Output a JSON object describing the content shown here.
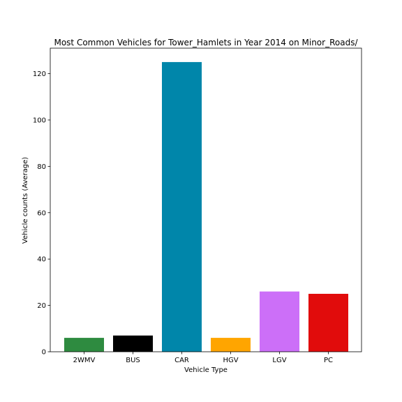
{
  "chart_data": {
    "type": "bar",
    "title": "Most Common Vehicles for Tower_Hamlets in Year 2014 on Minor_Roads/",
    "xlabel": "Vehicle Type",
    "ylabel": "Vehicle counts (Average)",
    "categories": [
      "2WMV",
      "BUS",
      "CAR",
      "HGV",
      "LGV",
      "PC"
    ],
    "values": [
      6,
      7,
      125,
      6,
      26,
      25
    ],
    "colors": [
      "#2e8b40",
      "#000000",
      "#0086aa",
      "#ffa500",
      "#cc6ff8",
      "#e10c0c"
    ],
    "ylim": [
      0,
      131
    ],
    "yticks": [
      0,
      20,
      40,
      60,
      80,
      100,
      120
    ],
    "ytick_labels": [
      "0",
      "20",
      "40",
      "60",
      "80",
      "100",
      "120"
    ],
    "grid": false,
    "legend": "none"
  }
}
